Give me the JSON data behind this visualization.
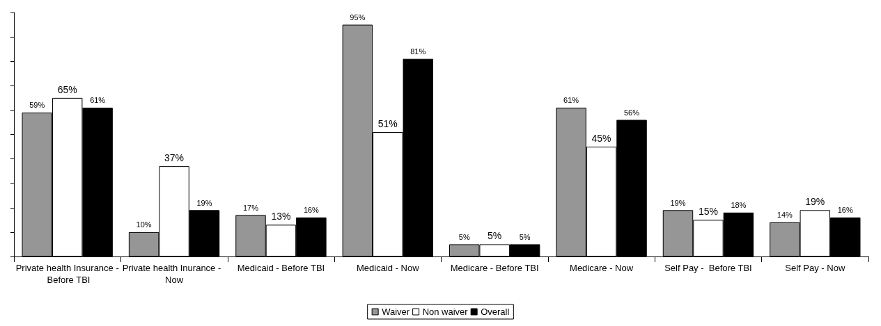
{
  "chart_data": {
    "type": "bar",
    "categories": [
      "Private health Insurance - Before TBI",
      "Private health Inurance -  Now",
      "Medicaid - Before TBI",
      "Medicaid - Now",
      "Medicare - Before TBI",
      "Medicare - Now",
      "Self Pay -  Before TBI",
      "Self Pay - Now"
    ],
    "series": [
      {
        "name": "Waiver",
        "color": "#969696",
        "values": [
          59,
          10,
          17,
          95,
          5,
          61,
          19,
          14
        ],
        "value_labels": [
          "59%",
          "10%",
          "17%",
          "95%",
          "5%",
          "61%",
          "19%",
          "14%"
        ]
      },
      {
        "name": "Non waiver",
        "color": "#ffffff",
        "values": [
          65,
          37,
          13,
          51,
          5,
          45,
          15,
          19
        ],
        "value_labels": [
          "65%",
          "37%",
          "13%",
          "51%",
          "5%",
          "45%",
          "15%",
          "19%"
        ]
      },
      {
        "name": "Overall",
        "color": "#000000",
        "values": [
          61,
          19,
          16,
          81,
          5,
          56,
          18,
          16
        ],
        "value_labels": [
          "61%",
          "19%",
          "16%",
          "81%",
          "5%",
          "56%",
          "18%",
          "16%"
        ]
      }
    ],
    "ylim": [
      0,
      100
    ],
    "yticks": [
      {
        "value": 0,
        "label": null
      },
      {
        "value": 10,
        "label": null
      },
      {
        "value": 20,
        "label": null
      },
      {
        "value": 30,
        "label": null
      },
      {
        "value": 40,
        "label": null
      },
      {
        "value": 50,
        "label": null
      },
      {
        "value": 60,
        "label": null
      },
      {
        "value": 70,
        "label": null
      },
      {
        "value": 80,
        "label": null
      },
      {
        "value": 90,
        "label": null
      },
      {
        "value": 100,
        "label": null
      }
    ],
    "tick_labels": "x",
    "grid": false,
    "legend": "bottom"
  }
}
